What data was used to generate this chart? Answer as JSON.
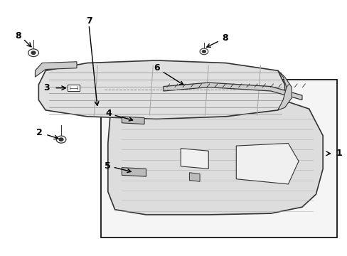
{
  "background_color": "#ffffff",
  "line_color": "#333333",
  "fill_outer": "#dddddd",
  "fill_lower": "#e0e0e0",
  "fill_box": "#f5f5f5",
  "gray_light": "#cccccc",
  "gray_mid": "#bbbbbb",
  "rib_color": "#999999",
  "strip_color": "#cccccc"
}
